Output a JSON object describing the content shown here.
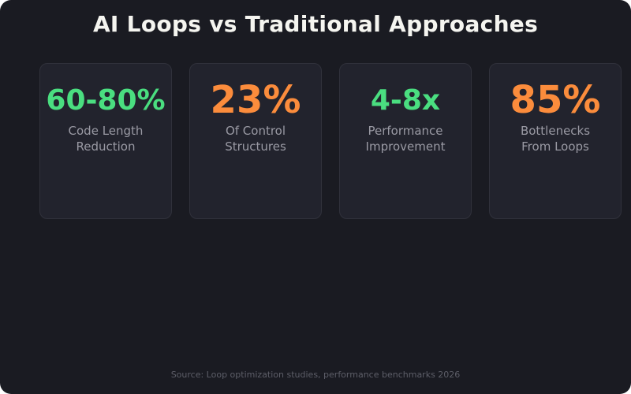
{
  "title": "AI Loops vs Traditional Approaches",
  "colors": {
    "background": "#1a1b22",
    "card": "#22232d",
    "green": "#4ade80",
    "orange": "#fb8c3c",
    "label": "#9a9aa4"
  },
  "stats": [
    {
      "value": "60-80%",
      "label_line1": "Code Length",
      "label_line2": "Reduction",
      "color": "#4ade80"
    },
    {
      "value": "23%",
      "label_line1": "Of Control",
      "label_line2": "Structures",
      "color": "#fb8c3c"
    },
    {
      "value": "4-8x",
      "label_line1": "Performance",
      "label_line2": "Improvement",
      "color": "#4ade80"
    },
    {
      "value": "85%",
      "label_line1": "Bottlenecks",
      "label_line2": "From Loops",
      "color": "#fb8c3c"
    }
  ],
  "source": "Source: Loop optimization studies, performance benchmarks 2026"
}
